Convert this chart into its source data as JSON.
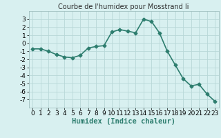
{
  "x": [
    0,
    1,
    2,
    3,
    4,
    5,
    6,
    7,
    8,
    9,
    10,
    11,
    12,
    13,
    14,
    15,
    16,
    17,
    18,
    19,
    20,
    21,
    22,
    23
  ],
  "y": [
    -0.7,
    -0.7,
    -1.0,
    -1.4,
    -1.7,
    -1.8,
    -1.5,
    -0.6,
    -0.4,
    -0.3,
    1.4,
    1.7,
    1.5,
    1.3,
    3.0,
    2.7,
    1.3,
    -1.0,
    -2.7,
    -4.4,
    -5.3,
    -5.1,
    -6.3,
    -7.2
  ],
  "line_color": "#2d7d6e",
  "marker": "D",
  "marker_size": 2.5,
  "bg_color": "#d8f0f0",
  "grid_color": "#b8d8d8",
  "title": "Courbe de l'humidex pour Mosstrand Ii",
  "xlabel": "Humidex (Indice chaleur)",
  "xlim": [
    -0.5,
    23.5
  ],
  "ylim": [
    -8,
    4
  ],
  "xticks": [
    0,
    1,
    2,
    3,
    4,
    5,
    6,
    7,
    8,
    9,
    10,
    11,
    12,
    13,
    14,
    15,
    16,
    17,
    18,
    19,
    20,
    21,
    22,
    23
  ],
  "yticks": [
    -7,
    -6,
    -5,
    -4,
    -3,
    -2,
    -1,
    0,
    1,
    2,
    3
  ],
  "xlabel_fontsize": 7.5,
  "tick_fontsize": 6.5,
  "title_fontsize": 7,
  "linewidth": 1.2
}
